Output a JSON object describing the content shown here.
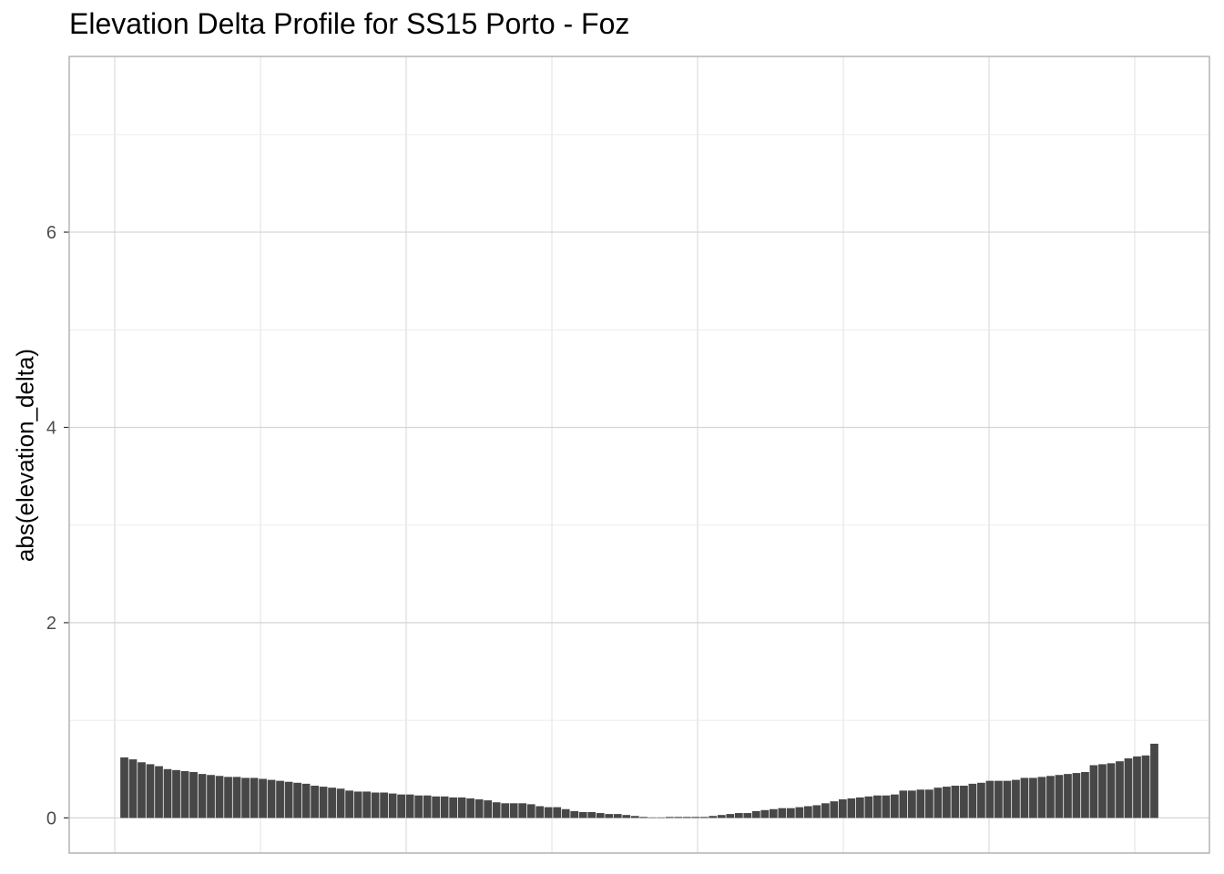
{
  "chart_data": {
    "type": "bar",
    "title": "Elevation Delta Profile for SS15 Porto - Foz",
    "xlabel": "",
    "ylabel": "abs(elevation_delta)",
    "ylim": [
      -0.36,
      7.8
    ],
    "yticks": [
      0,
      2,
      4,
      6
    ],
    "grid": true,
    "bar_color": "#474747",
    "values": [
      0.62,
      0.6,
      0.57,
      0.55,
      0.53,
      0.5,
      0.49,
      0.48,
      0.47,
      0.45,
      0.44,
      0.43,
      0.42,
      0.42,
      0.41,
      0.41,
      0.4,
      0.39,
      0.38,
      0.37,
      0.36,
      0.35,
      0.33,
      0.32,
      0.31,
      0.3,
      0.28,
      0.27,
      0.27,
      0.26,
      0.26,
      0.25,
      0.24,
      0.24,
      0.23,
      0.23,
      0.22,
      0.22,
      0.21,
      0.21,
      0.2,
      0.19,
      0.18,
      0.16,
      0.15,
      0.15,
      0.15,
      0.14,
      0.12,
      0.11,
      0.11,
      0.09,
      0.07,
      0.06,
      0.06,
      0.05,
      0.04,
      0.04,
      0.03,
      0.02,
      0.01,
      0.005,
      0.005,
      0.01,
      0.01,
      0.01,
      0.01,
      0.01,
      0.02,
      0.03,
      0.04,
      0.05,
      0.05,
      0.07,
      0.08,
      0.09,
      0.1,
      0.1,
      0.11,
      0.12,
      0.13,
      0.15,
      0.17,
      0.19,
      0.2,
      0.21,
      0.22,
      0.23,
      0.23,
      0.24,
      0.28,
      0.28,
      0.29,
      0.29,
      0.31,
      0.32,
      0.33,
      0.33,
      0.35,
      0.36,
      0.38,
      0.38,
      0.38,
      0.39,
      0.41,
      0.41,
      0.42,
      0.43,
      0.44,
      0.45,
      0.46,
      0.47,
      0.54,
      0.55,
      0.56,
      0.58,
      0.61,
      0.63,
      0.64,
      0.76
    ]
  }
}
